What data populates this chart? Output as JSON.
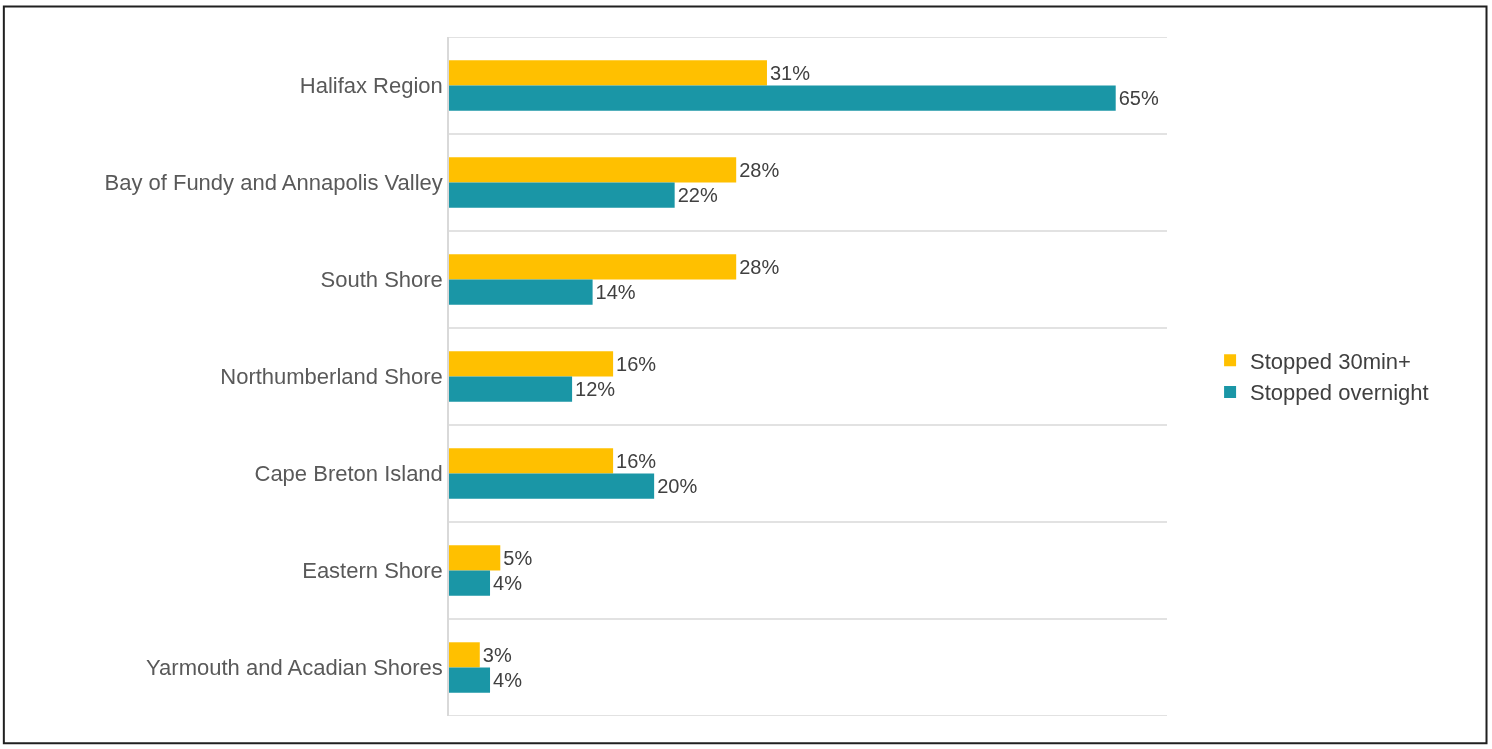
{
  "chart_data": {
    "type": "bar",
    "orientation": "horizontal",
    "categories": [
      "Halifax Region",
      "Bay of Fundy and Annapolis Valley",
      "South Shore",
      "Northumberland Shore",
      "Cape Breton Island",
      "Eastern Shore",
      "Yarmouth and Acadian Shores"
    ],
    "series": [
      {
        "name": "Stopped 30min+",
        "color": "#ffc000",
        "values": [
          31,
          28,
          28,
          16,
          16,
          5,
          3
        ],
        "value_labels": [
          "31%",
          "28%",
          "28%",
          "16%",
          "16%",
          "5%",
          "3%"
        ]
      },
      {
        "name": "Stopped overnight",
        "color": "#1a96a6",
        "values": [
          65,
          22,
          14,
          12,
          20,
          4,
          4
        ],
        "value_labels": [
          "65%",
          "22%",
          "14%",
          "12%",
          "20%",
          "4%",
          "4%"
        ]
      }
    ],
    "xlim": [
      0,
      70
    ],
    "tick_labels": "y",
    "grid": "y",
    "legend": "right"
  }
}
